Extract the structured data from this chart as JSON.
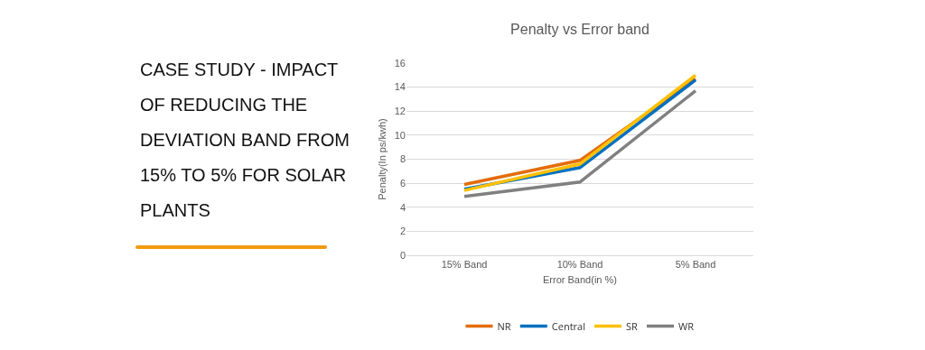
{
  "chart_data": {
    "type": "line",
    "title": "Penalty vs Error band",
    "xlabel": "Error Band(in %)",
    "ylabel": "Penalty(In ps/kwh)",
    "annotations": [
      "CASE STUDY - IMPACT OF REDUCING THE DEVIATION BAND FROM 15% TO 5% FOR SOLAR PLANTS"
    ],
    "categories": [
      "15% Band",
      "10% Band",
      "5% Band"
    ],
    "series": [
      {
        "name": "NR",
        "color": "#e46c0a",
        "values": [
          5.9,
          7.9,
          14.7
        ]
      },
      {
        "name": "Central",
        "color": "#0070c0",
        "values": [
          5.5,
          7.3,
          14.6
        ]
      },
      {
        "name": "SR",
        "color": "#ffc000",
        "values": [
          5.4,
          7.6,
          15.0
        ]
      },
      {
        "name": "WR",
        "color": "#808080",
        "values": [
          4.9,
          6.1,
          13.7
        ]
      }
    ],
    "ylim": [
      0,
      16
    ],
    "yticks": [
      0,
      2,
      4,
      6,
      8,
      10,
      12,
      14,
      16
    ],
    "grid": "y",
    "legend": "bottom",
    "marker": "none",
    "line_style": "solid"
  }
}
